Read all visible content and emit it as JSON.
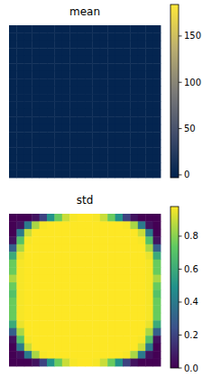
{
  "chart_data": [
    {
      "type": "heatmap",
      "title": "mean",
      "tick_labels": false,
      "cells": [
        [
          0,
          0,
          0,
          0,
          0,
          0,
          0,
          0,
          0,
          0,
          0,
          0,
          0,
          0,
          0,
          0,
          0,
          0,
          0,
          0
        ],
        [
          0,
          0,
          0,
          0,
          0,
          0,
          0,
          0,
          0,
          0,
          0,
          0,
          0,
          0,
          0,
          0,
          0,
          0,
          0,
          0
        ],
        [
          0,
          0,
          0,
          0,
          0,
          0,
          0,
          0,
          0,
          0,
          0,
          0,
          0,
          0,
          0,
          0,
          0,
          0,
          0,
          0
        ],
        [
          0,
          0,
          0,
          0,
          0,
          0,
          0,
          0,
          0,
          0,
          0,
          0,
          0,
          0,
          0,
          0,
          0,
          0,
          0,
          0
        ],
        [
          0,
          0,
          0,
          0,
          0,
          0,
          0,
          0,
          0,
          0,
          0,
          0,
          0,
          0,
          0,
          0,
          0,
          0,
          0,
          0
        ],
        [
          0,
          0,
          0,
          0,
          0,
          0,
          0,
          0,
          0,
          0,
          0,
          0,
          0,
          0,
          0,
          0,
          0,
          0,
          0,
          0
        ],
        [
          0,
          0,
          0,
          0,
          0,
          0,
          0,
          0,
          0,
          0,
          0,
          0,
          0,
          0,
          0,
          0,
          0,
          0,
          0,
          0
        ],
        [
          0,
          0,
          0,
          0,
          0,
          0,
          0,
          0,
          0,
          0,
          0,
          0,
          0,
          0,
          0,
          0,
          0,
          0,
          0,
          0
        ],
        [
          0,
          0,
          0,
          0,
          0,
          0,
          0,
          0,
          0,
          0,
          0,
          0,
          0,
          0,
          0,
          0,
          0,
          0,
          0,
          0
        ],
        [
          0,
          0,
          0,
          0,
          0,
          0,
          0,
          0,
          0,
          0,
          0,
          0,
          0,
          0,
          0,
          0,
          0,
          0,
          0,
          0
        ],
        [
          0,
          0,
          0,
          0,
          0,
          0,
          0,
          0,
          0,
          0,
          0,
          0,
          0,
          0,
          0,
          0,
          0,
          0,
          0,
          0
        ],
        [
          0,
          0,
          0,
          0,
          0,
          0,
          0,
          0,
          0,
          0,
          0,
          0,
          0,
          0,
          0,
          0,
          0,
          0,
          0,
          0
        ],
        [
          0,
          0,
          0,
          0,
          0,
          0,
          0,
          0,
          0,
          0,
          0,
          0,
          0,
          0,
          0,
          0,
          0,
          0,
          0,
          0
        ],
        [
          0,
          0,
          0,
          0,
          0,
          0,
          0,
          0,
          0,
          0,
          0,
          0,
          0,
          0,
          0,
          0,
          0,
          0,
          0,
          0
        ],
        [
          0,
          0,
          0,
          0,
          0,
          0,
          0,
          0,
          0,
          0,
          0,
          0,
          0,
          0,
          0,
          0,
          0,
          0,
          0,
          0
        ],
        [
          0,
          0,
          0,
          0,
          0,
          0,
          0,
          0,
          0,
          0,
          0,
          0,
          0,
          0,
          0,
          0,
          0,
          0,
          0,
          0
        ],
        [
          0,
          0,
          0,
          0,
          0,
          0,
          0,
          0,
          0,
          0,
          0,
          0,
          0,
          0,
          0,
          0,
          0,
          0,
          0,
          0
        ],
        [
          0,
          0,
          0,
          0,
          0,
          0,
          0,
          0,
          0,
          0,
          0,
          0,
          0,
          0,
          0,
          0,
          0,
          0,
          0,
          0
        ],
        [
          0,
          0,
          0,
          0,
          0,
          0,
          0,
          0,
          0,
          0,
          0,
          0,
          0,
          0,
          0,
          0,
          0,
          0,
          0,
          0
        ],
        [
          0,
          0,
          0,
          0,
          0,
          0,
          0,
          0,
          0,
          0,
          0,
          0,
          0,
          0,
          0,
          0,
          0,
          0,
          0,
          0
        ]
      ],
      "colorbar": {
        "range": [
          -3,
          184
        ],
        "ticks": [
          0,
          50,
          100,
          150
        ]
      }
    },
    {
      "type": "heatmap",
      "title": "std",
      "tick_labels": false,
      "cells": [
        [
          0,
          0,
          0,
          0.05,
          0.2,
          0.5,
          0.75,
          0.9,
          0.97,
          0.98,
          0.98,
          0.97,
          0.9,
          0.75,
          0.5,
          0.2,
          0.05,
          0,
          0,
          0
        ],
        [
          0,
          0.05,
          0.4,
          0.85,
          0.97,
          0.98,
          0.98,
          0.98,
          0.98,
          0.98,
          0.98,
          0.98,
          0.98,
          0.98,
          0.98,
          0.97,
          0.85,
          0.4,
          0.05,
          0
        ],
        [
          0,
          0.4,
          0.9,
          0.98,
          0.98,
          0.98,
          0.98,
          0.98,
          0.98,
          0.98,
          0.98,
          0.98,
          0.98,
          0.98,
          0.98,
          0.98,
          0.98,
          0.9,
          0.4,
          0
        ],
        [
          0.05,
          0.7,
          0.97,
          0.98,
          0.98,
          0.98,
          0.98,
          0.98,
          0.98,
          0.98,
          0.98,
          0.98,
          0.98,
          0.98,
          0.98,
          0.98,
          0.98,
          0.97,
          0.7,
          0.05
        ],
        [
          0.3,
          0.85,
          0.98,
          0.98,
          0.98,
          0.98,
          0.98,
          0.98,
          0.98,
          0.98,
          0.98,
          0.98,
          0.98,
          0.98,
          0.98,
          0.98,
          0.98,
          0.98,
          0.85,
          0.3
        ],
        [
          0.6,
          0.95,
          0.98,
          0.98,
          0.98,
          0.98,
          0.98,
          0.98,
          0.98,
          0.98,
          0.98,
          0.98,
          0.98,
          0.98,
          0.98,
          0.98,
          0.98,
          0.98,
          0.95,
          0.6
        ],
        [
          0.75,
          0.97,
          0.98,
          0.98,
          0.98,
          0.98,
          0.98,
          0.98,
          0.98,
          0.98,
          0.98,
          0.98,
          0.98,
          0.98,
          0.98,
          0.98,
          0.98,
          0.98,
          0.97,
          0.75
        ],
        [
          0.75,
          0.97,
          0.98,
          0.98,
          0.98,
          0.98,
          0.98,
          0.98,
          0.98,
          0.98,
          0.98,
          0.98,
          0.98,
          0.98,
          0.98,
          0.98,
          0.98,
          0.98,
          0.97,
          0.75
        ],
        [
          0.85,
          0.97,
          0.98,
          0.98,
          0.98,
          0.98,
          0.98,
          0.98,
          0.98,
          0.98,
          0.98,
          0.98,
          0.98,
          0.98,
          0.98,
          0.98,
          0.98,
          0.98,
          0.97,
          0.85
        ],
        [
          0.75,
          0.97,
          0.98,
          0.98,
          0.98,
          0.98,
          0.98,
          0.98,
          0.98,
          0.98,
          0.98,
          0.98,
          0.98,
          0.98,
          0.98,
          0.98,
          0.98,
          0.98,
          0.97,
          0.75
        ],
        [
          0.7,
          0.97,
          0.98,
          0.98,
          0.98,
          0.98,
          0.98,
          0.98,
          0.98,
          0.98,
          0.98,
          0.98,
          0.98,
          0.98,
          0.98,
          0.98,
          0.98,
          0.98,
          0.97,
          0.7
        ],
        [
          0.75,
          0.97,
          0.98,
          0.98,
          0.98,
          0.98,
          0.98,
          0.98,
          0.98,
          0.98,
          0.98,
          0.98,
          0.98,
          0.98,
          0.98,
          0.98,
          0.98,
          0.98,
          0.97,
          0.75
        ],
        [
          0.75,
          0.97,
          0.98,
          0.98,
          0.98,
          0.98,
          0.98,
          0.98,
          0.98,
          0.98,
          0.98,
          0.98,
          0.98,
          0.98,
          0.98,
          0.98,
          0.98,
          0.98,
          0.97,
          0.75
        ],
        [
          0.75,
          0.97,
          0.98,
          0.98,
          0.98,
          0.98,
          0.98,
          0.98,
          0.98,
          0.98,
          0.98,
          0.98,
          0.98,
          0.98,
          0.98,
          0.98,
          0.98,
          0.98,
          0.97,
          0.75
        ],
        [
          0.6,
          0.95,
          0.98,
          0.98,
          0.98,
          0.98,
          0.98,
          0.98,
          0.98,
          0.98,
          0.98,
          0.98,
          0.98,
          0.98,
          0.98,
          0.98,
          0.98,
          0.98,
          0.95,
          0.6
        ],
        [
          0.3,
          0.85,
          0.98,
          0.98,
          0.98,
          0.98,
          0.98,
          0.98,
          0.98,
          0.98,
          0.98,
          0.98,
          0.98,
          0.98,
          0.98,
          0.98,
          0.98,
          0.98,
          0.85,
          0.3
        ],
        [
          0.05,
          0.7,
          0.97,
          0.98,
          0.98,
          0.98,
          0.98,
          0.98,
          0.98,
          0.98,
          0.98,
          0.98,
          0.98,
          0.98,
          0.98,
          0.98,
          0.98,
          0.97,
          0.7,
          0.05
        ],
        [
          0,
          0.4,
          0.9,
          0.98,
          0.98,
          0.98,
          0.98,
          0.98,
          0.98,
          0.98,
          0.98,
          0.98,
          0.98,
          0.98,
          0.98,
          0.98,
          0.98,
          0.9,
          0.4,
          0
        ],
        [
          0,
          0.05,
          0.4,
          0.85,
          0.97,
          0.98,
          0.98,
          0.98,
          0.98,
          0.98,
          0.98,
          0.98,
          0.98,
          0.98,
          0.98,
          0.97,
          0.85,
          0.4,
          0.05,
          0
        ],
        [
          0,
          0,
          0,
          0.05,
          0.2,
          0.5,
          0.75,
          0.9,
          0.97,
          0.98,
          0.98,
          0.97,
          0.9,
          0.75,
          0.5,
          0.2,
          0.05,
          0,
          0,
          0
        ]
      ],
      "colorbar": {
        "range": [
          0,
          0.98
        ],
        "ticks": [
          {
            "value": 0,
            "label": "0.0"
          },
          {
            "value": 0.2,
            "label": "0.2"
          },
          {
            "value": 0.4,
            "label": "0.4"
          },
          {
            "value": 0.6,
            "label": "0.6"
          },
          {
            "value": 0.8,
            "label": "0.8"
          }
        ]
      }
    }
  ]
}
